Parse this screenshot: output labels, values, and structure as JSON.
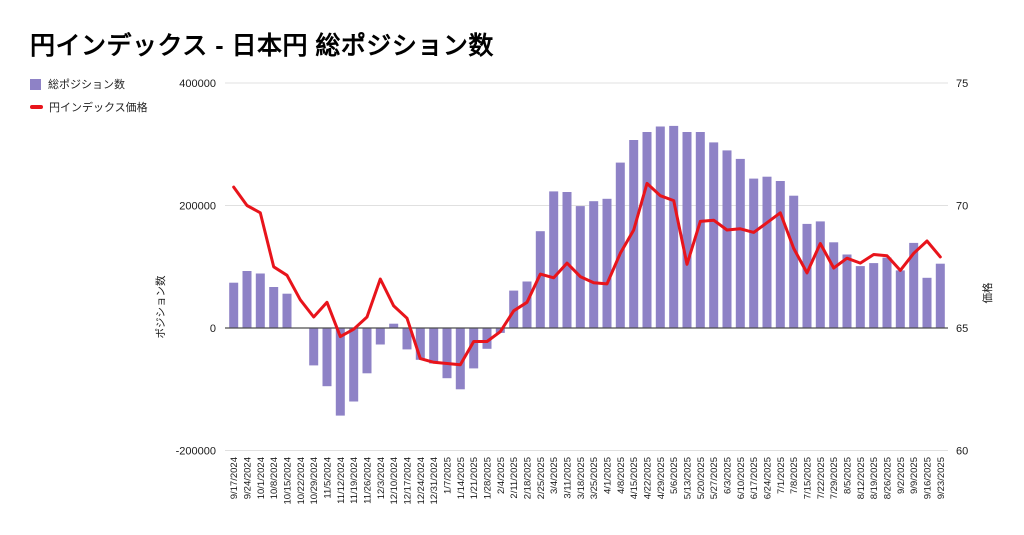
{
  "title": "円インデックス - 日本円 総ポジション数",
  "legend": [
    {
      "label": "総ポジション数",
      "swatch": "bar-swatch"
    },
    {
      "label": "円インデックス価格",
      "swatch": "line-swatch"
    }
  ],
  "colors": {
    "bar": "#8e82c6",
    "line": "#e8141b",
    "grid": "#e0e0e0",
    "zero_line": "#4d4d4d",
    "tick_text": "#1a1a1a",
    "background": "#ffffff"
  },
  "chart_data": {
    "type": "bar+line",
    "title": "円インデックス - 日本円 総ポジション数",
    "grid": true,
    "legend_position": "top-left",
    "categories": [
      "9/17/2024",
      "9/24/2024",
      "10/1/2024",
      "10/8/2024",
      "10/15/2024",
      "10/22/2024",
      "10/29/2024",
      "11/5/2024",
      "11/12/2024",
      "11/19/2024",
      "11/26/2024",
      "12/3/2024",
      "12/10/2024",
      "12/17/2024",
      "12/24/2024",
      "12/31/2024",
      "1/7/2025",
      "1/14/2025",
      "1/21/2025",
      "1/28/2025",
      "2/4/2025",
      "2/11/2025",
      "2/18/2025",
      "2/25/2025",
      "3/4/2025",
      "3/11/2025",
      "3/18/2025",
      "3/25/2025",
      "4/1/2025",
      "4/8/2025",
      "4/15/2025",
      "4/22/2025",
      "4/29/2025",
      "5/6/2025",
      "5/13/2025",
      "5/20/2025",
      "5/27/2025",
      "6/3/2025",
      "6/10/2025",
      "6/17/2025",
      "6/24/2025",
      "7/1/2025",
      "7/8/2025",
      "7/15/2025",
      "7/22/2025",
      "7/29/2025",
      "8/5/2025",
      "8/12/2025",
      "8/19/2025",
      "8/26/2025",
      "9/2/2025",
      "9/9/2025",
      "9/16/2025",
      "9/23/2025"
    ],
    "series": [
      {
        "name": "総ポジション数",
        "type": "bar",
        "yaxis": "left",
        "color": "#8e82c6",
        "values": [
          74000,
          93000,
          89000,
          67000,
          56000,
          0,
          -61000,
          -95000,
          -143000,
          -120000,
          -74000,
          -27000,
          7000,
          -35000,
          -52000,
          -58000,
          -82000,
          -100000,
          -66000,
          -34000,
          -8000,
          61000,
          76000,
          158000,
          223000,
          222000,
          199000,
          207000,
          211000,
          270000,
          307000,
          320000,
          329000,
          330000,
          320000,
          320000,
          303000,
          290000,
          276000,
          244000,
          247000,
          240000,
          216000,
          170000,
          174000,
          140000,
          120000,
          101000,
          106000,
          115000,
          94000,
          139000,
          82000,
          105000
        ]
      },
      {
        "name": "円インデックス価格",
        "type": "line",
        "yaxis": "right",
        "color": "#e8141b",
        "values": [
          70.75,
          70.0,
          69.7,
          67.5,
          67.15,
          66.15,
          65.45,
          66.05,
          64.65,
          64.95,
          65.45,
          67.0,
          65.9,
          65.4,
          63.75,
          63.6,
          63.55,
          63.5,
          64.45,
          64.45,
          64.85,
          65.7,
          66.05,
          67.2,
          67.05,
          67.65,
          67.1,
          66.85,
          66.8,
          68.05,
          69.0,
          70.9,
          70.4,
          70.2,
          67.6,
          69.35,
          69.4,
          69.0,
          69.05,
          68.9,
          69.3,
          69.7,
          68.25,
          67.25,
          68.45,
          67.45,
          67.85,
          67.65,
          68.0,
          67.95,
          67.35,
          68.05,
          68.55,
          67.9
        ]
      }
    ],
    "axes": {
      "left": {
        "label": "ポジション数",
        "ticks": [
          400000,
          200000,
          0,
          -200000
        ],
        "range": [
          -200000,
          400000
        ]
      },
      "right": {
        "label": "価格",
        "ticks": [
          75,
          70,
          65,
          60
        ],
        "range": [
          60,
          75
        ]
      }
    }
  }
}
